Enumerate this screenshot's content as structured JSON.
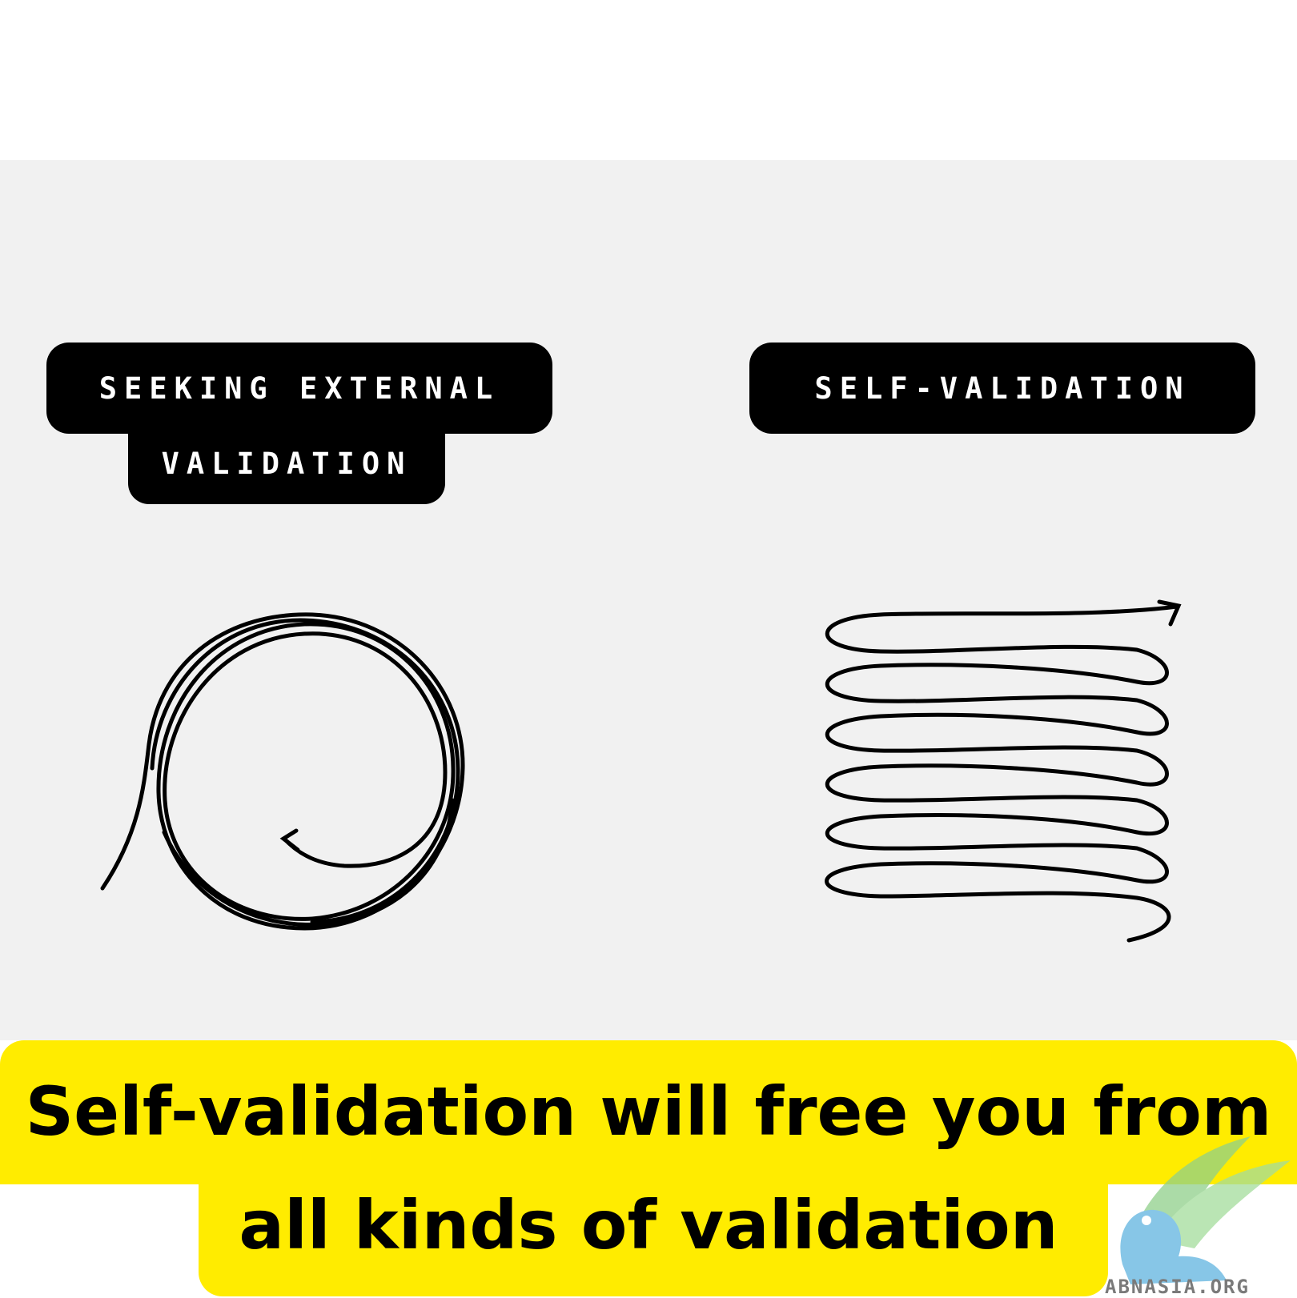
{
  "labels": {
    "left_line1": "SEEKING EXTERNAL",
    "left_line2": "VALIDATION",
    "right": "SELF-VALIDATION"
  },
  "caption": {
    "line1": "Self-validation will free you from",
    "line2": "all kinds of validation"
  },
  "watermark": {
    "text": "ABNASIA.ORG"
  },
  "colors": {
    "caption_background": "#ffec00",
    "label_background": "#000000",
    "panel_background": "#f1f1f1"
  }
}
